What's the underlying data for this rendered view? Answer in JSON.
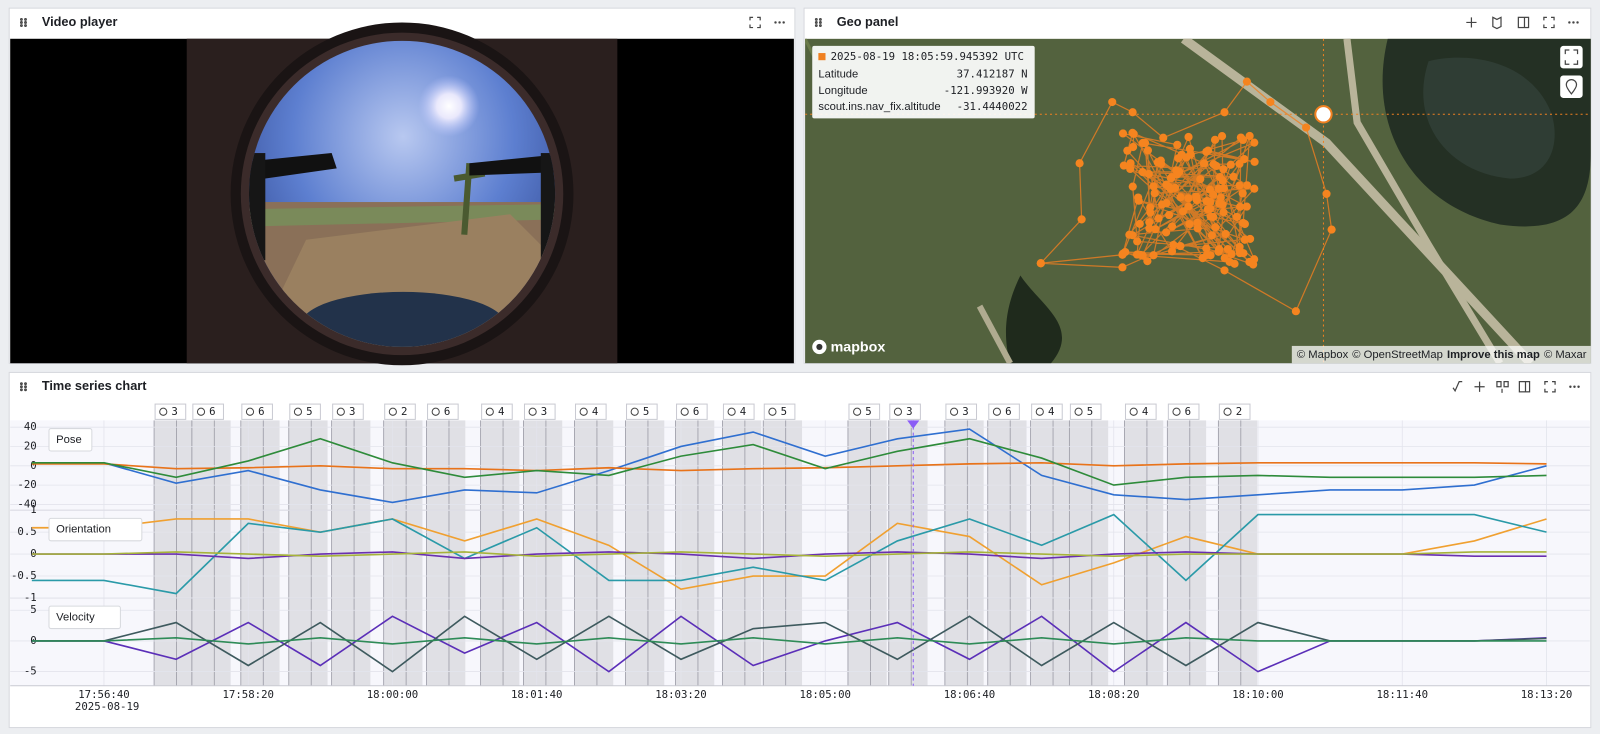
{
  "video_panel": {
    "title": "Video player"
  },
  "geo_panel": {
    "title": "Geo panel",
    "tooltip": {
      "timestamp": "2025-08-19 18:05:59.945392 UTC",
      "rows": [
        {
          "label": "Latitude",
          "value": "37.412187 N"
        },
        {
          "label": "Longitude",
          "value": "-121.993920 W"
        },
        {
          "label": "scout.ins.nav_fix.altitude",
          "value": "-31.4440022"
        }
      ]
    },
    "logo": "mapbox",
    "attribution": [
      "© Mapbox",
      "© OpenStreetMap",
      "Improve this map",
      "© Maxar"
    ]
  },
  "time_series_panel": {
    "title": "Time series chart",
    "event_counts": [
      3,
      6,
      6,
      5,
      3,
      2,
      6,
      4,
      3,
      4,
      5,
      6,
      4,
      5,
      5,
      3,
      3,
      6,
      4,
      5,
      4,
      6,
      2
    ],
    "x_date": "2025-08-19",
    "xlim": [
      64535,
      65630
    ],
    "xticks": [
      {
        "value": 64600,
        "label": "17:56:40"
      },
      {
        "value": 64700,
        "label": "17:58:20"
      },
      {
        "value": 64800,
        "label": "18:00:00"
      },
      {
        "value": 64900,
        "label": "18:01:40"
      },
      {
        "value": 65000,
        "label": "18:03:20"
      },
      {
        "value": 65100,
        "label": "18:05:00"
      },
      {
        "value": 65200,
        "label": "18:06:40"
      },
      {
        "value": 65300,
        "label": "18:08:20"
      },
      {
        "value": 65400,
        "label": "18:10:00"
      },
      {
        "value": 65500,
        "label": "18:11:40"
      },
      {
        "value": 65600,
        "label": "18:13:20"
      }
    ],
    "x": [
      64550,
      64600,
      64650,
      64700,
      64750,
      64800,
      64850,
      64900,
      64950,
      65000,
      65050,
      65100,
      65150,
      65200,
      65250,
      65300,
      65350,
      65400,
      65450,
      65500,
      65550,
      65600
    ],
    "subplots": [
      {
        "name": "Pose",
        "ylim": [
          -46,
          47
        ],
        "yticks": [
          40,
          20,
          0,
          -20,
          -40
        ],
        "series": [
          {
            "color": "#2f6fd0",
            "values": [
              3,
              3,
              -18,
              -5,
              -25,
              -38,
              -25,
              -28,
              -5,
              20,
              35,
              10,
              28,
              38,
              -10,
              -30,
              -35,
              -30,
              -25,
              -25,
              -20,
              0
            ]
          },
          {
            "color": "#e8731a",
            "values": [
              2,
              2,
              -3,
              -2,
              0,
              -3,
              -3,
              -5,
              -2,
              -5,
              -3,
              -2,
              0,
              2,
              3,
              0,
              2,
              3,
              3,
              3,
              3,
              2
            ]
          },
          {
            "color": "#2e8b3a",
            "values": [
              3,
              3,
              -12,
              5,
              28,
              3,
              -12,
              -5,
              -10,
              10,
              22,
              -3,
              15,
              28,
              8,
              -20,
              -12,
              -10,
              -12,
              -12,
              -12,
              -10
            ]
          }
        ]
      },
      {
        "name": "Orientation",
        "ylim": [
          -1,
          1
        ],
        "yticks": [
          1,
          0.5,
          0,
          -0.5,
          -1
        ],
        "series": [
          {
            "color": "#f0a030",
            "values": [
              0.6,
              0.6,
              0.8,
              0.8,
              0.5,
              0.8,
              0.3,
              0.8,
              0.2,
              -0.8,
              -0.5,
              -0.5,
              0.7,
              0.4,
              -0.7,
              -0.2,
              0.4,
              0,
              0,
              0,
              0.3,
              0.8
            ]
          },
          {
            "color": "#2a9aa8",
            "values": [
              -0.6,
              -0.6,
              -0.9,
              0.7,
              0.5,
              0.8,
              -0.1,
              0.6,
              -0.6,
              -0.6,
              -0.3,
              -0.6,
              0.3,
              0.8,
              0.2,
              0.9,
              -0.6,
              0.9,
              0.9,
              0.9,
              0.9,
              0.5
            ]
          },
          {
            "color": "#6a2fb0",
            "values": [
              0,
              0,
              0,
              -0.1,
              0,
              0.05,
              -0.1,
              0,
              0.05,
              0,
              -0.1,
              0,
              0.05,
              0,
              -0.1,
              0,
              0.05,
              0,
              0,
              0,
              -0.05,
              -0.05
            ]
          },
          {
            "color": "#a6b33a",
            "values": [
              0,
              0,
              0.05,
              0,
              -0.05,
              0,
              0.05,
              -0.05,
              0,
              0.05,
              0,
              -0.05,
              0,
              0.05,
              0,
              -0.05,
              0,
              0,
              0,
              0,
              0.05,
              0.05
            ]
          }
        ]
      },
      {
        "name": "Velocity",
        "ylim": [
          -7.3,
          7
        ],
        "yticks": [
          5,
          0,
          -5
        ],
        "series": [
          {
            "color": "#5b2fb8",
            "values": [
              0,
              0,
              -3,
              3,
              -4,
              4,
              -2,
              3,
              -5,
              4,
              -4,
              0,
              3,
              -3,
              4,
              -5,
              3,
              -5,
              0,
              0,
              0,
              0.5
            ]
          },
          {
            "color": "#3e5a5e",
            "values": [
              0,
              0,
              3,
              -4,
              3,
              -5,
              4,
              -3,
              4,
              -3,
              2,
              3,
              -3,
              4,
              -4,
              3,
              -4,
              3,
              0,
              0,
              0,
              0.4
            ]
          },
          {
            "color": "#2e8b57",
            "values": [
              0,
              0,
              0.5,
              -0.5,
              0.5,
              -0.5,
              0.5,
              -0.5,
              0.5,
              -0.5,
              0.5,
              -0.5,
              0.5,
              -0.5,
              0.5,
              -0.5,
              0.5,
              0,
              0,
              0,
              0,
              0
            ]
          }
        ]
      }
    ]
  }
}
